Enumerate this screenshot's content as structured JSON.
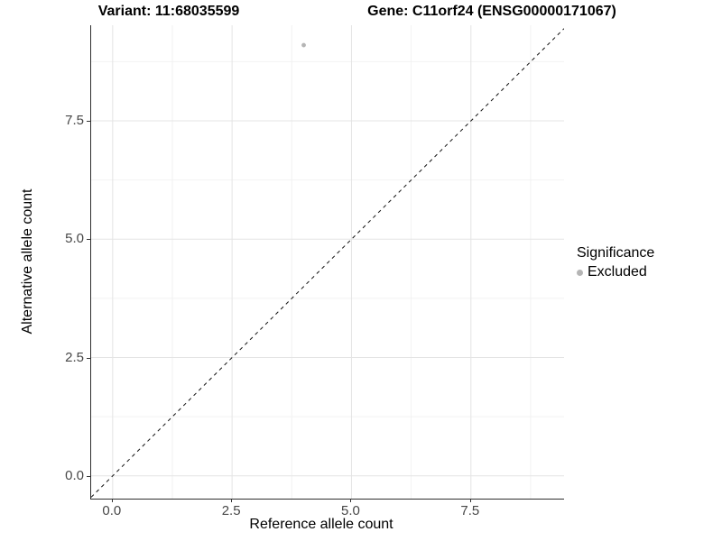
{
  "header": {
    "variant_title": "Variant: 11:68035599",
    "gene_title": "Gene: C11orf24 (ENSG00000171067)"
  },
  "chart_data": {
    "type": "scatter",
    "xlabel": "Reference allele count",
    "ylabel": "Alternative allele count",
    "xlim": [
      -0.45,
      9.45
    ],
    "ylim": [
      -0.48,
      9.52
    ],
    "x_tick_values": [
      0,
      2.5,
      5.0,
      7.5
    ],
    "x_tick_labels": [
      "0.0",
      "2.5",
      "5.0",
      "7.5"
    ],
    "y_tick_values": [
      0,
      2.5,
      5.0,
      7.5
    ],
    "y_tick_labels": [
      "0.0",
      "2.5",
      "5.0",
      "7.5"
    ],
    "minor_tick_values": [
      1.25,
      3.75,
      6.25,
      8.75
    ],
    "grid": "major+minor",
    "grid_major_color": "#e4e4e4",
    "grid_minor_color": "#f2f2f2",
    "points": [
      {
        "x": 4.0,
        "y": 9.1,
        "series": "Excluded"
      }
    ],
    "identity_line": {
      "equation": "y = x",
      "style": "dashed",
      "color": "#111111"
    },
    "legend": {
      "position": "right",
      "title": "Significance",
      "items": [
        {
          "label": "Excluded",
          "color": "#b5b5b5"
        }
      ]
    }
  }
}
